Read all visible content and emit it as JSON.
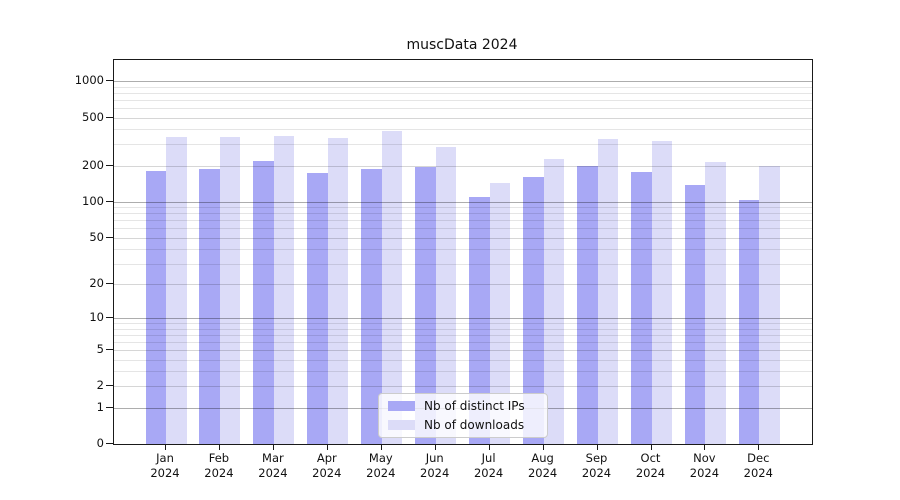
{
  "chart_data": {
    "type": "bar",
    "title": "muscData 2024",
    "categories": [
      {
        "month": "Jan",
        "year": "2024"
      },
      {
        "month": "Feb",
        "year": "2024"
      },
      {
        "month": "Mar",
        "year": "2024"
      },
      {
        "month": "Apr",
        "year": "2024"
      },
      {
        "month": "May",
        "year": "2024"
      },
      {
        "month": "Jun",
        "year": "2024"
      },
      {
        "month": "Jul",
        "year": "2024"
      },
      {
        "month": "Aug",
        "year": "2024"
      },
      {
        "month": "Sep",
        "year": "2024"
      },
      {
        "month": "Oct",
        "year": "2024"
      },
      {
        "month": "Nov",
        "year": "2024"
      },
      {
        "month": "Dec",
        "year": "2024"
      }
    ],
    "series": [
      {
        "name": "Nb of distinct IPs",
        "color": "#a8a8f5",
        "values": [
          180,
          188,
          220,
          173,
          186,
          193,
          109,
          161,
          197,
          176,
          137,
          103
        ]
      },
      {
        "name": "Nb of downloads",
        "color": "#dcdcf8",
        "values": [
          348,
          344,
          351,
          340,
          388,
          285,
          142,
          229,
          330,
          322,
          214,
          200
        ]
      }
    ],
    "yscale": "log1p",
    "ylim": [
      0,
      1500
    ],
    "yticks": [
      0,
      1,
      2,
      5,
      10,
      20,
      50,
      100,
      200,
      500,
      1000
    ],
    "y_major_gridlines": [
      1,
      10,
      100,
      1000
    ],
    "y_minor_gridlines": [
      3,
      4,
      6,
      7,
      8,
      9,
      30,
      40,
      60,
      70,
      80,
      90,
      300,
      400,
      600,
      700,
      800,
      900
    ],
    "grid": "on",
    "legend_position": "lower center",
    "xlabel": "",
    "ylabel": "",
    "axis_color": "#1a1a1a",
    "grid_major_color": "rgba(0,0,0,0.32)",
    "grid_mid_color": "rgba(0,0,0,0.16)",
    "grid_minor_color": "rgba(0,0,0,0.10)"
  }
}
